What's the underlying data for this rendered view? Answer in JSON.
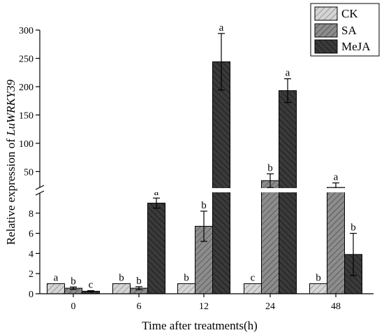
{
  "chart_data": {
    "type": "bar",
    "xlabel": "Time after treatments(h)",
    "ylabel_prefix": "Relative expression of ",
    "ylabel_gene": "LuWRKY39",
    "categories": [
      "0",
      "6",
      "12",
      "24",
      "48"
    ],
    "axis_break": true,
    "lower_segment": {
      "ylim": [
        0,
        10
      ],
      "ticks": [
        "0",
        "2",
        "4",
        "6",
        "8"
      ]
    },
    "upper_segment": {
      "ylim": [
        22,
        300
      ],
      "ticks": [
        "50",
        "100",
        "150",
        "200",
        "250",
        "300"
      ]
    },
    "series": [
      {
        "name": "CK",
        "fill": "#d4d4d4",
        "values": [
          1,
          1,
          1,
          1,
          1
        ],
        "errors": [
          0,
          0,
          0,
          0,
          0
        ],
        "labels": [
          "a",
          "b",
          "b",
          "c",
          "b"
        ]
      },
      {
        "name": "SA",
        "fill": "#8c8c8c",
        "values": [
          0.55,
          0.55,
          6.7,
          34,
          22
        ],
        "errors": [
          0.12,
          0.15,
          1.5,
          12,
          8
        ],
        "labels": [
          "b",
          "b",
          "b",
          "b",
          "a"
        ]
      },
      {
        "name": "MeJA",
        "fill": "#3a3a3a",
        "values": [
          0.25,
          9,
          244,
          193,
          3.9
        ],
        "errors": [
          0.06,
          0.5,
          50,
          21,
          2.1
        ],
        "labels": [
          "c",
          "a",
          "a",
          "a",
          "b"
        ]
      }
    ],
    "legend_position": "top-right"
  }
}
